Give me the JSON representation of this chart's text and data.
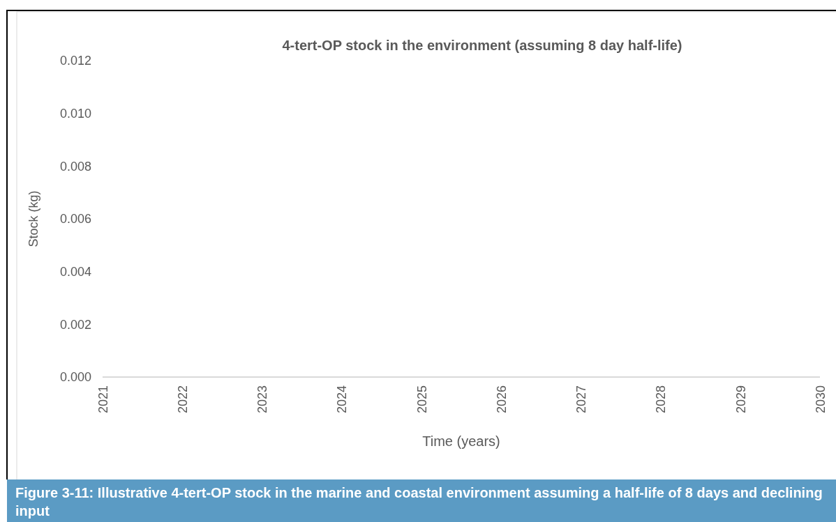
{
  "chart_data": {
    "type": "line",
    "title": "4-tert-OP stock in the environment (assuming 8 day half-life)",
    "xlabel": "Time (years)",
    "ylabel": "Stock (kg)",
    "categories": [
      "2021",
      "2022",
      "2023",
      "2024",
      "2025",
      "2026",
      "2027",
      "2028",
      "2029",
      "2030"
    ],
    "series": [
      {
        "color": "#d9d9d9",
        "values": [
          0,
          0,
          0,
          0,
          0,
          0,
          0,
          0,
          0,
          0
        ]
      }
    ],
    "ylim": [
      0,
      0.012
    ],
    "yticks": [
      {
        "value": 0,
        "label": "0.000"
      },
      {
        "value": 0.002,
        "label": "0.002"
      },
      {
        "value": 0.004,
        "label": "0.004"
      },
      {
        "value": 0.006,
        "label": "0.006"
      },
      {
        "value": 0.008,
        "label": "0.008"
      },
      {
        "value": 0.01,
        "label": "0.010"
      },
      {
        "value": 0.012,
        "label": "0.012"
      }
    ],
    "annotations": [
      "Figure 3-11:  Illustrative 4-tert-OP stock in the marine and coastal environment assuming a half-life of 8 days and declining input"
    ]
  }
}
